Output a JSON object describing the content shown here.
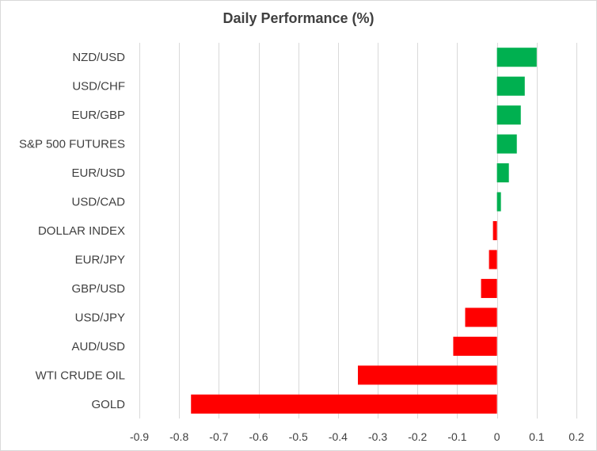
{
  "chart_data": {
    "type": "bar",
    "orientation": "horizontal",
    "title": "Daily Performance (%)",
    "xlabel": "",
    "ylabel": "",
    "xlim": [
      -0.9,
      0.2
    ],
    "xticks": [
      -0.9,
      -0.8,
      -0.7,
      -0.6,
      -0.5,
      -0.4,
      -0.3,
      -0.2,
      -0.1,
      0,
      0.1,
      0.2
    ],
    "grid": true,
    "legend": "none",
    "categories": [
      "NZD/USD",
      "USD/CHF",
      "EUR/GBP",
      "S&P 500 FUTURES",
      "EUR/USD",
      "USD/CAD",
      "DOLLAR INDEX",
      "EUR/JPY",
      "GBP/USD",
      "USD/JPY",
      "AUD/USD",
      "WTI CRUDE OIL",
      "GOLD"
    ],
    "values": [
      0.1,
      0.07,
      0.06,
      0.05,
      0.03,
      0.01,
      -0.01,
      -0.02,
      -0.04,
      -0.08,
      -0.11,
      -0.35,
      -0.77
    ],
    "colors": {
      "positive": "#00b050",
      "negative": "#ff0000",
      "grid": "#d9d9d9"
    }
  }
}
